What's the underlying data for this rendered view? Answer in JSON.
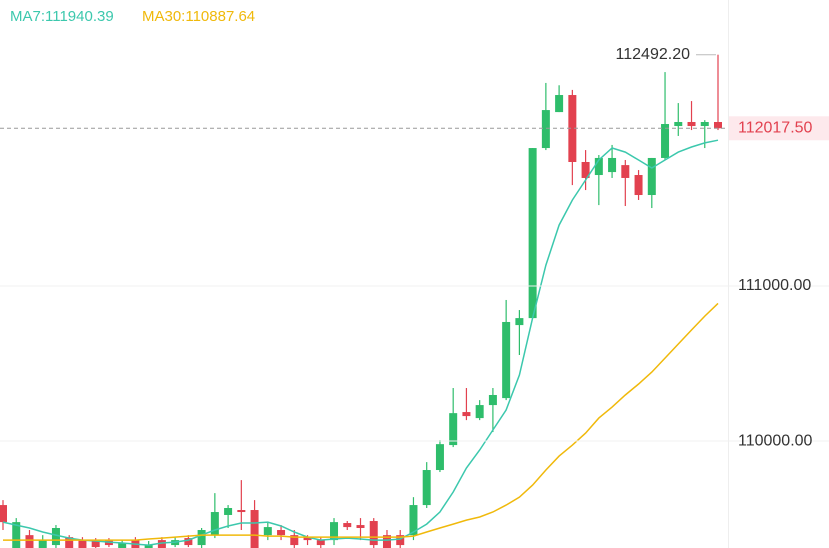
{
  "chart_data": {
    "type": "candlestick",
    "legend": [
      "MA7:111940.39",
      "MA30:110887.64"
    ],
    "up_color": "#2ebd6b",
    "down_color": "#e2414f",
    "open": [
      109587,
      109310,
      109393,
      109310,
      109329,
      109380,
      109361,
      109355,
      109361,
      109310,
      109361,
      109310,
      109361,
      109329,
      109374,
      109329,
      109393,
      109523,
      109555,
      109555,
      109393,
      109426,
      109393,
      109380,
      109361,
      109361,
      109471,
      109458,
      109484,
      109393,
      109393,
      109393,
      109587,
      109813,
      109974,
      110187,
      110148,
      110232,
      110277,
      110748,
      110793,
      111890,
      112122,
      112232,
      111800,
      111716,
      111735,
      111780,
      111716,
      111587,
      111826,
      112032,
      112058,
      112032,
      112058
    ],
    "high": [
      109619,
      109503,
      109426,
      109393,
      109458,
      109393,
      109380,
      109374,
      109374,
      109361,
      109380,
      109355,
      109380,
      109380,
      109393,
      109439,
      109664,
      109587,
      109748,
      109619,
      109477,
      109458,
      109426,
      109393,
      109380,
      109503,
      109484,
      109503,
      109503,
      109426,
      109426,
      109638,
      109864,
      110006,
      110342,
      110342,
      110264,
      110342,
      110910,
      110845,
      111890,
      112310,
      112295,
      112265,
      111877,
      111845,
      111910,
      111813,
      111748,
      111826,
      112380,
      112180,
      112193,
      112070,
      112492.2
    ],
    "low": [
      109426,
      109284,
      109284,
      109284,
      109310,
      109284,
      109284,
      109310,
      109316,
      109284,
      109284,
      109284,
      109284,
      109316,
      109316,
      109310,
      109374,
      109439,
      109426,
      109284,
      109361,
      109361,
      109310,
      109329,
      109310,
      109329,
      109426,
      109361,
      109310,
      109284,
      109310,
      109361,
      109568,
      109800,
      109961,
      110135,
      110135,
      110058,
      110264,
      110555,
      110793,
      111877,
      112122,
      111651,
      111619,
      111522,
      111697,
      111516,
      111555,
      111503,
      111813,
      111968,
      112006,
      111890,
      112006
    ],
    "close": [
      109477,
      109477,
      109310,
      109361,
      109439,
      109310,
      109310,
      109316,
      109329,
      109342,
      109310,
      109329,
      109310,
      109361,
      109329,
      109426,
      109542,
      109568,
      109542,
      109310,
      109445,
      109393,
      109329,
      109361,
      109329,
      109477,
      109445,
      109439,
      109329,
      109310,
      109329,
      109587,
      109813,
      109980,
      110180,
      110161,
      110232,
      110297,
      110768,
      110793,
      111890,
      112135,
      112232,
      111800,
      111697,
      111826,
      111826,
      111697,
      111587,
      111826,
      112045,
      112058,
      112032,
      112058,
      112017.5
    ],
    "series": [
      {
        "name": "MA7",
        "color": "#3cc8ad",
        "values": [
          109477,
          109458,
          109439,
          109413,
          109393,
          109374,
          109361,
          109355,
          109348,
          109342,
          109335,
          109329,
          109342,
          109348,
          109361,
          109393,
          109426,
          109452,
          109471,
          109471,
          109477,
          109452,
          109413,
          109380,
          109361,
          109368,
          109374,
          109368,
          109361,
          109361,
          109368,
          109413,
          109464,
          109542,
          109671,
          109826,
          109942,
          110071,
          110200,
          110426,
          110793,
          111135,
          111393,
          111555,
          111684,
          111813,
          111890,
          111864,
          111813,
          111761,
          111813,
          111864,
          111897,
          111923,
          111940.39
        ]
      },
      {
        "name": "MA30",
        "color": "#f0b90b",
        "values": [
          109361,
          109361,
          109361,
          109361,
          109361,
          109361,
          109361,
          109361,
          109361,
          109361,
          109361,
          109368,
          109374,
          109380,
          109387,
          109393,
          109393,
          109393,
          109393,
          109393,
          109387,
          109387,
          109380,
          109380,
          109380,
          109380,
          109380,
          109380,
          109380,
          109380,
          109380,
          109387,
          109413,
          109439,
          109464,
          109490,
          109510,
          109542,
          109587,
          109638,
          109716,
          109813,
          109903,
          109974,
          110051,
          110148,
          110219,
          110297,
          110368,
          110445,
          110535,
          110626,
          110716,
          110806,
          110887.64
        ]
      }
    ],
    "ylim": [
      109310,
      112845
    ],
    "yticks": [
      {
        "value": 111000,
        "label": "111000.00"
      },
      {
        "value": 110000,
        "label": "110000.00"
      }
    ],
    "grid": true,
    "last_price": {
      "value": 112017.5,
      "label": "112017.50"
    },
    "max_annotation": {
      "value": 112492.2,
      "label": "112492.20"
    }
  }
}
